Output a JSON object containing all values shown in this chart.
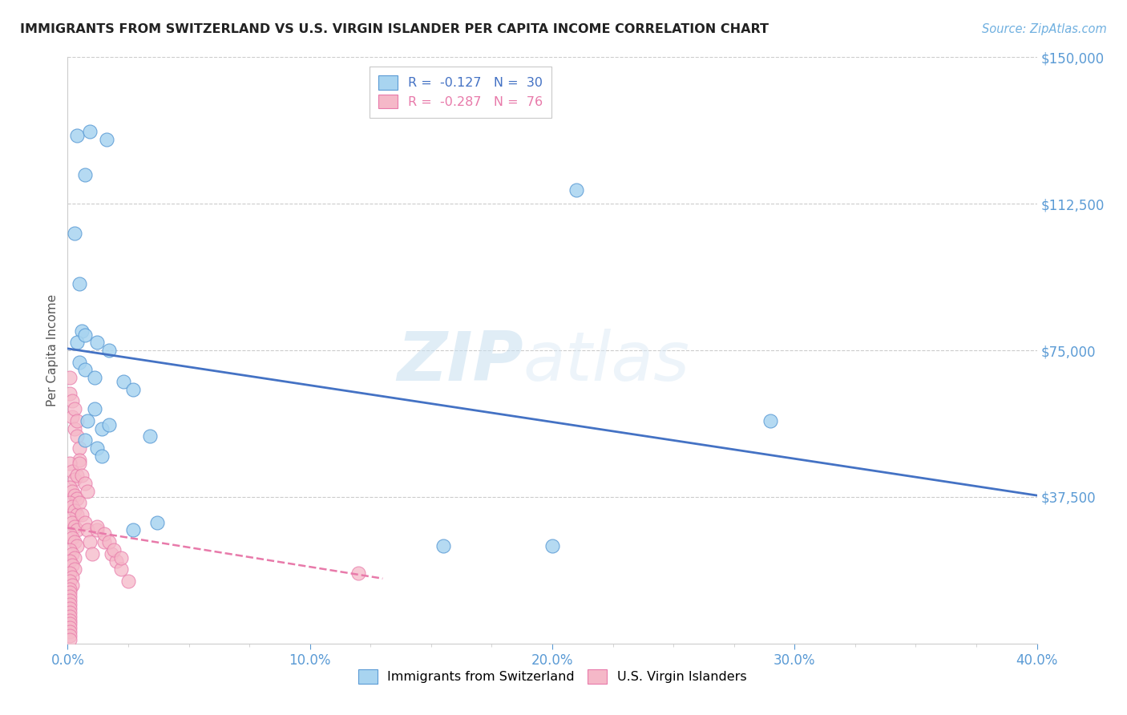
{
  "title": "IMMIGRANTS FROM SWITZERLAND VS U.S. VIRGIN ISLANDER PER CAPITA INCOME CORRELATION CHART",
  "source": "Source: ZipAtlas.com",
  "ylabel": "Per Capita Income",
  "xlim": [
    0,
    0.4
  ],
  "ylim": [
    0,
    150000
  ],
  "xtick_labels": [
    "0.0%",
    "10.0%",
    "20.0%",
    "30.0%",
    "40.0%"
  ],
  "xtick_values": [
    0,
    0.1,
    0.2,
    0.3,
    0.4
  ],
  "ytick_labels": [
    "$37,500",
    "$75,000",
    "$112,500",
    "$150,000"
  ],
  "ytick_values": [
    37500,
    75000,
    112500,
    150000
  ],
  "watermark_zip": "ZIP",
  "watermark_atlas": "atlas",
  "legend_entry1": "R =  -0.127   N =  30",
  "legend_entry2": "R =  -0.287   N =  76",
  "legend_label1": "Immigrants from Switzerland",
  "legend_label2": "U.S. Virgin Islanders",
  "blue_face": "#a8d4f0",
  "blue_edge": "#5b9bd5",
  "pink_face": "#f5b8c8",
  "pink_edge": "#e87aaa",
  "blue_line": "#4472c4",
  "pink_line": "#e87aaa",
  "grid_color": "#cccccc",
  "title_color": "#222222",
  "source_color": "#70b0e0",
  "axis_color": "#5b9bd5",
  "switzerland_x": [
    0.004,
    0.009,
    0.016,
    0.007,
    0.003,
    0.005,
    0.006,
    0.004,
    0.005,
    0.007,
    0.011,
    0.007,
    0.012,
    0.017,
    0.011,
    0.008,
    0.014,
    0.017,
    0.007,
    0.012,
    0.014,
    0.023,
    0.027,
    0.034,
    0.037,
    0.027,
    0.21,
    0.29,
    0.2,
    0.155
  ],
  "switzerland_y": [
    130000,
    131000,
    129000,
    120000,
    105000,
    92000,
    80000,
    77000,
    72000,
    70000,
    68000,
    79000,
    77000,
    75000,
    60000,
    57000,
    55000,
    56000,
    52000,
    50000,
    48000,
    67000,
    65000,
    53000,
    31000,
    29000,
    116000,
    57000,
    25000,
    25000
  ],
  "virgin_x": [
    0.001,
    0.001,
    0.002,
    0.002,
    0.003,
    0.003,
    0.004,
    0.004,
    0.005,
    0.005,
    0.001,
    0.002,
    0.003,
    0.004,
    0.001,
    0.002,
    0.003,
    0.004,
    0.001,
    0.002,
    0.003,
    0.004,
    0.001,
    0.002,
    0.003,
    0.004,
    0.001,
    0.002,
    0.003,
    0.004,
    0.001,
    0.002,
    0.003,
    0.001,
    0.002,
    0.003,
    0.001,
    0.002,
    0.001,
    0.002,
    0.001,
    0.001,
    0.001,
    0.001,
    0.001,
    0.001,
    0.001,
    0.001,
    0.001,
    0.001,
    0.005,
    0.006,
    0.007,
    0.008,
    0.005,
    0.006,
    0.007,
    0.008,
    0.009,
    0.01,
    0.012,
    0.015,
    0.018,
    0.02,
    0.022,
    0.012,
    0.015,
    0.017,
    0.019,
    0.022,
    0.025,
    0.001,
    0.001,
    0.001,
    0.001,
    0.12
  ],
  "virgin_y": [
    68000,
    64000,
    62000,
    58000,
    60000,
    55000,
    57000,
    53000,
    50000,
    47000,
    46000,
    44000,
    42000,
    43000,
    40000,
    39000,
    38000,
    37000,
    36000,
    35000,
    34000,
    33000,
    32000,
    31000,
    30000,
    29000,
    28000,
    27000,
    26000,
    25000,
    24000,
    23000,
    22000,
    21000,
    20000,
    19000,
    18000,
    17000,
    16000,
    15000,
    14000,
    13000,
    12000,
    11000,
    10000,
    9000,
    8000,
    7000,
    6000,
    5000,
    46000,
    43000,
    41000,
    39000,
    36000,
    33000,
    31000,
    29000,
    26000,
    23000,
    29000,
    26000,
    23000,
    21000,
    19000,
    30000,
    28000,
    26000,
    24000,
    22000,
    16000,
    4000,
    3000,
    2000,
    1000,
    18000
  ]
}
